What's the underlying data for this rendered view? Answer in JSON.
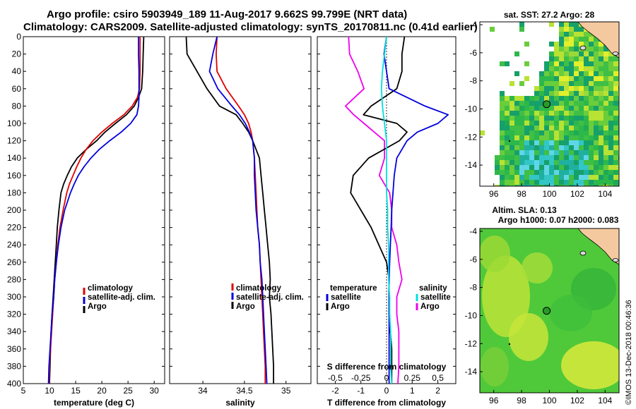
{
  "title_line1": "Argo profile: csiro 5903949_189 11-Aug-2017 9.662S 99.799E (NRT data)",
  "title_line2": "Climatology: CARS2009. Satellite-adjusted climatology: synTS_20170811.nc (0.41d earlier)",
  "credit": "©IMOS 13-Dec-2018 00:46:36",
  "colors": {
    "climatology": "#e00000",
    "satellite": "#0000dd",
    "argo": "#000000",
    "salinity": "#ee00ee",
    "sat_salinity": "#00e0e0",
    "land": "#f5c9a0",
    "marker": "#2a9a2a"
  },
  "depth_axis": {
    "ylim": [
      0,
      400
    ],
    "ticks": [
      "0",
      "20",
      "40",
      "60",
      "80",
      "100",
      "120",
      "140",
      "160",
      "180",
      "200",
      "220",
      "240",
      "260",
      "280",
      "300",
      "320",
      "340",
      "360",
      "380",
      "400"
    ]
  },
  "legends": {
    "panel1": [
      "climatology",
      "satellite-adj. clim.",
      "Argo"
    ],
    "panel2": [
      "climatology",
      "satellite-adj. clim.",
      "Argo"
    ],
    "panel3_temperature": {
      "header": "temperature",
      "items": [
        "satellite",
        "Argo"
      ]
    },
    "panel3_salinity": {
      "header": "salinity",
      "items": [
        "satellite",
        "Argo"
      ]
    }
  },
  "chart_data": [
    {
      "type": "line",
      "panel": "temperature",
      "xlabel": "temperature (deg C)",
      "xlim": [
        5,
        32
      ],
      "x_ticks": [
        "5",
        "10",
        "15",
        "20",
        "25",
        "30"
      ],
      "x_tick_values": [
        5,
        10,
        15,
        20,
        25,
        30
      ],
      "depth": [
        0,
        20,
        40,
        60,
        70,
        80,
        90,
        100,
        110,
        120,
        130,
        140,
        150,
        160,
        170,
        180,
        200,
        220,
        240,
        260,
        280,
        300,
        320,
        340,
        360,
        380,
        400
      ],
      "series": [
        {
          "name": "climatology",
          "values": [
            27.3,
            27.3,
            27.3,
            27.2,
            26.8,
            25.8,
            24.2,
            22.0,
            20.0,
            18.3,
            17.0,
            16.0,
            15.2,
            14.5,
            13.8,
            13.3,
            12.6,
            12.0,
            11.6,
            11.3,
            11.0,
            10.8,
            10.6,
            10.4,
            10.2,
            10.0,
            9.9
          ]
        },
        {
          "name": "satellite-adj. clim.",
          "values": [
            27.0,
            27.0,
            27.1,
            27.1,
            27.1,
            27.0,
            26.7,
            25.5,
            23.7,
            21.5,
            19.5,
            17.9,
            16.6,
            15.5,
            14.7,
            14.0,
            12.9,
            12.2,
            11.7,
            11.3,
            11.0,
            10.8,
            10.5,
            10.3,
            10.1,
            9.9,
            9.8
          ]
        },
        {
          "name": "Argo",
          "values": [
            28.0,
            27.9,
            27.8,
            27.6,
            27.0,
            26.2,
            24.7,
            22.6,
            20.6,
            19.0,
            17.0,
            15.3,
            14.2,
            13.4,
            12.7,
            12.2,
            11.8,
            11.5,
            11.3,
            11.1,
            10.9,
            10.7,
            10.5,
            10.3,
            10.2,
            10.1,
            10.0
          ]
        }
      ]
    },
    {
      "type": "line",
      "panel": "salinity",
      "xlabel": "salinity",
      "xlim": [
        33.6,
        35.3
      ],
      "x_ticks": [
        "34",
        "34.5",
        "35"
      ],
      "x_tick_values": [
        34,
        34.5,
        35
      ],
      "depth": [
        0,
        20,
        40,
        60,
        80,
        90,
        100,
        110,
        120,
        140,
        160,
        180,
        200,
        220,
        240,
        260,
        280,
        300,
        320,
        340,
        360,
        380,
        400
      ],
      "series": [
        {
          "name": "climatology",
          "values": [
            34.17,
            34.16,
            34.17,
            34.28,
            34.43,
            34.5,
            34.55,
            34.58,
            34.6,
            34.62,
            34.63,
            34.64,
            34.65,
            34.66,
            34.68,
            34.69,
            34.7,
            34.71,
            34.72,
            34.73,
            34.74,
            34.75,
            34.75
          ]
        },
        {
          "name": "satellite-adj. clim.",
          "values": [
            34.17,
            34.12,
            34.08,
            34.18,
            34.35,
            34.44,
            34.51,
            34.56,
            34.6,
            34.62,
            34.62,
            34.63,
            34.64,
            34.66,
            34.68,
            34.69,
            34.71,
            34.72,
            34.73,
            34.74,
            34.75,
            34.76,
            34.77
          ]
        },
        {
          "name": "Argo",
          "values": [
            33.8,
            33.81,
            33.93,
            34.05,
            34.2,
            34.4,
            34.48,
            34.55,
            34.6,
            34.68,
            34.7,
            34.72,
            34.74,
            34.76,
            34.78,
            34.8,
            34.81,
            34.8,
            34.82,
            34.83,
            34.84,
            34.85,
            34.85
          ]
        }
      ]
    },
    {
      "type": "line",
      "panel": "difference",
      "xlabel": "T difference from climatology",
      "xlabel_top": "S difference from climatology",
      "xlim": [
        -2.7,
        2.7
      ],
      "x_ticks": [
        "-2",
        "-1",
        "0",
        "1",
        "2"
      ],
      "x_tick_values": [
        -2,
        -1,
        0,
        1,
        2
      ],
      "s_ticks": [
        "-0.5",
        "-0.25",
        "0",
        "0.25",
        "0.5"
      ],
      "s_tick_values": [
        -0.5,
        -0.25,
        0,
        0.25,
        0.5
      ],
      "depth": [
        0,
        20,
        40,
        60,
        80,
        90,
        100,
        110,
        120,
        140,
        160,
        180,
        200,
        220,
        240,
        260,
        280,
        300,
        320,
        340,
        360,
        380,
        400
      ],
      "series": [
        {
          "name": "temperature satellite",
          "quantity": "temperature",
          "values": [
            0.0,
            -0.1,
            0.0,
            0.1,
            1.5,
            2.4,
            2.0,
            1.2,
            0.8,
            0.4,
            0.3,
            0.25,
            0.2,
            0.18,
            0.15,
            0.12,
            0.1,
            0.1,
            0.1,
            0.1,
            0.1,
            0.1,
            0.1
          ]
        },
        {
          "name": "temperature Argo",
          "quantity": "temperature",
          "values": [
            0.7,
            0.6,
            0.6,
            0.4,
            -0.6,
            -0.9,
            0.4,
            0.8,
            0.5,
            -0.7,
            -1.3,
            -1.4,
            -1.0,
            -0.6,
            -0.3,
            0.0,
            0.1,
            0.1,
            0.1,
            0.15,
            0.2,
            0.2,
            0.2
          ]
        },
        {
          "name": "salinity satellite",
          "quantity": "salinity",
          "values": [
            0.0,
            -0.02,
            -0.04,
            -0.05,
            -0.04,
            -0.03,
            -0.02,
            -0.01,
            0.0,
            0.0,
            0.0,
            0.0,
            0.01,
            0.01,
            0.02,
            0.02,
            0.02,
            0.03,
            0.03,
            0.04,
            0.04,
            0.04,
            0.05
          ]
        },
        {
          "name": "salinity Argo",
          "quantity": "salinity",
          "values": [
            -0.37,
            -0.36,
            -0.28,
            -0.22,
            -0.4,
            -0.32,
            -0.22,
            -0.12,
            -0.02,
            -0.02,
            -0.07,
            0.03,
            0.05,
            0.05,
            0.1,
            0.12,
            0.15,
            0.1,
            0.1,
            0.12,
            0.12,
            0.12,
            0.11
          ]
        }
      ]
    },
    {
      "type": "heatmap",
      "panel": "sst_map",
      "title": "sat. SST: 27.2  Argo: 28",
      "lon_range": [
        95,
        105
      ],
      "lat_range": [
        -15.5,
        -3.8
      ],
      "x_ticks": [
        "96",
        "98",
        "100",
        "102",
        "104"
      ],
      "x_tick_values": [
        96,
        98,
        100,
        102,
        104
      ],
      "y_ticks": [
        "-4",
        "-6",
        "-8",
        "-10",
        "-12",
        "-14"
      ],
      "y_tick_values": [
        -4,
        -6,
        -8,
        -10,
        -12,
        -14
      ],
      "argo_position": {
        "lon": 99.8,
        "lat": -9.66
      }
    },
    {
      "type": "heatmap",
      "panel": "sla_map",
      "title": "Altim. SLA: 0.13",
      "subtitle": "Argo h1000: 0.07  h2000: 0.083",
      "lon_range": [
        95,
        105
      ],
      "lat_range": [
        -15.5,
        -3.8
      ],
      "x_ticks": [
        "96",
        "98",
        "100",
        "102",
        "104"
      ],
      "x_tick_values": [
        96,
        98,
        100,
        102,
        104
      ],
      "y_ticks": [
        "-4",
        "-6",
        "-8",
        "-10",
        "-12",
        "-14"
      ],
      "y_tick_values": [
        -4,
        -6,
        -8,
        -10,
        -12,
        -14
      ],
      "argo_position": {
        "lon": 99.8,
        "lat": -9.66
      }
    }
  ]
}
